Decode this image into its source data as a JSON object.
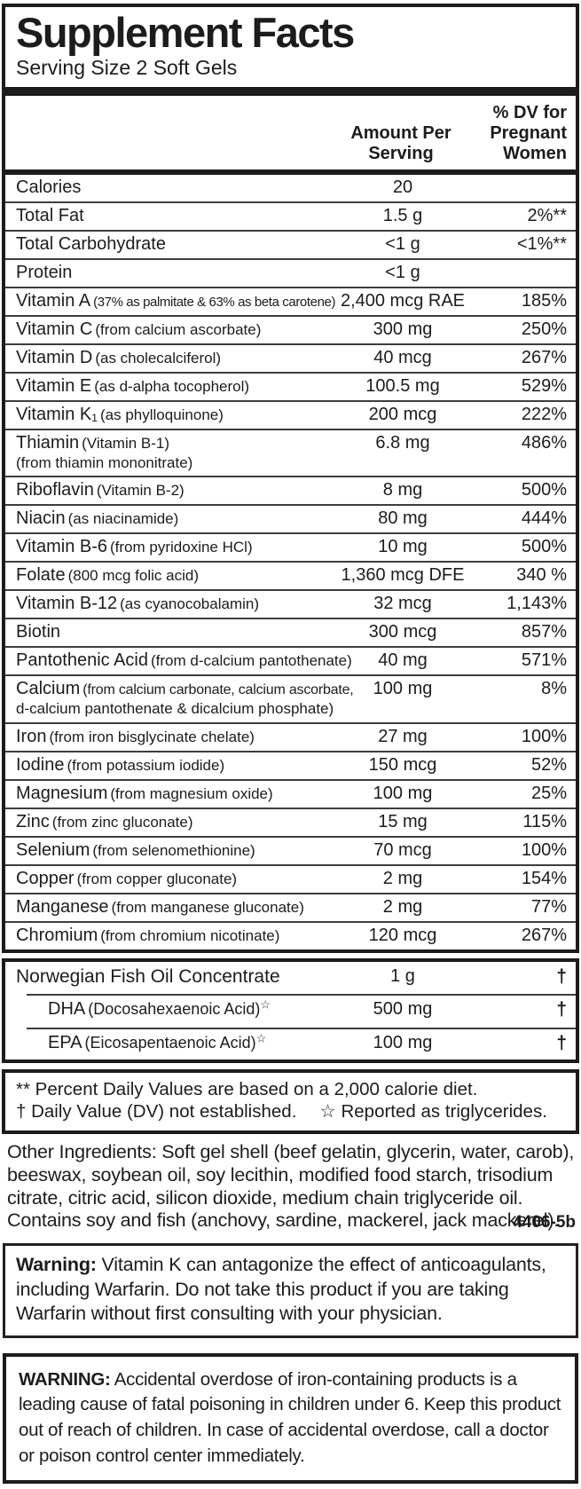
{
  "header": {
    "title": "Supplement Facts",
    "serving_size": "Serving Size 2 Soft Gels"
  },
  "columns": {
    "amount": "Amount Per\nServing",
    "dv": "% DV for\nPregnant\nWomen"
  },
  "main_rows": [
    {
      "name": "Calories",
      "detail": "",
      "line2": "",
      "amount": "20",
      "dv": ""
    },
    {
      "name": "Total Fat",
      "detail": "",
      "line2": "",
      "amount": "1.5 g",
      "dv": "2%**"
    },
    {
      "name": "Total Carbohydrate",
      "detail": "",
      "line2": "",
      "amount": "<1 g",
      "dv": "<1%**"
    },
    {
      "name": "Protein",
      "detail": "",
      "line2": "",
      "amount": "<1 g",
      "dv": ""
    },
    {
      "name": "Vitamin A",
      "detail": "(37% as palmitate & 63% as beta carotene)",
      "line2": "",
      "amount": "2,400 mcg RAE",
      "dv": "185%"
    },
    {
      "name": "Vitamin C",
      "detail": "(from calcium ascorbate)",
      "line2": "",
      "amount": "300 mg",
      "dv": "250%"
    },
    {
      "name": "Vitamin D",
      "detail": "(as cholecalciferol)",
      "line2": "",
      "amount": "40 mcg",
      "dv": "267%"
    },
    {
      "name": "Vitamin E",
      "detail": "(as d-alpha tocopherol)",
      "line2": "",
      "amount": "100.5 mg",
      "dv": "529%"
    },
    {
      "name": "Vitamin K₁",
      "detail": "(as phylloquinone)",
      "line2": "",
      "amount": "200 mcg",
      "dv": "222%"
    },
    {
      "name": "Thiamin",
      "detail": "(Vitamin B-1)",
      "line2": "(from thiamin mononitrate)",
      "amount": "6.8 mg",
      "dv": "486%"
    },
    {
      "name": "Riboflavin",
      "detail": "(Vitamin B-2)",
      "line2": "",
      "amount": "8 mg",
      "dv": "500%"
    },
    {
      "name": "Niacin",
      "detail": "(as niacinamide)",
      "line2": "",
      "amount": "80 mg",
      "dv": "444%"
    },
    {
      "name": "Vitamin B-6",
      "detail": "(from pyridoxine HCl)",
      "line2": "",
      "amount": "10 mg",
      "dv": "500%"
    },
    {
      "name": "Folate",
      "detail": "(800 mcg folic acid)",
      "line2": "",
      "amount": "1,360 mcg DFE",
      "dv": "340 %"
    },
    {
      "name": "Vitamin B-12",
      "detail": "(as cyanocobalamin)",
      "line2": "",
      "amount": "32 mcg",
      "dv": "1,143%"
    },
    {
      "name": "Biotin",
      "detail": "",
      "line2": "",
      "amount": "300 mcg",
      "dv": "857%"
    },
    {
      "name": "Pantothenic Acid",
      "detail": "(from d-calcium pantothenate)",
      "line2": "",
      "amount": "40 mg",
      "dv": "571%"
    },
    {
      "name": "Calcium",
      "detail": "(from calcium carbonate, calcium ascorbate,",
      "line2": "d-calcium pantothenate & dicalcium phosphate)",
      "amount": "100 mg",
      "dv": "8%"
    },
    {
      "name": "Iron",
      "detail": "(from iron bisglycinate chelate)",
      "line2": "",
      "amount": "27 mg",
      "dv": "100%"
    },
    {
      "name": "Iodine",
      "detail": "(from potassium iodide)",
      "line2": "",
      "amount": "150 mcg",
      "dv": "52%"
    },
    {
      "name": "Magnesium",
      "detail": "(from magnesium oxide)",
      "line2": "",
      "amount": "100 mg",
      "dv": "25%"
    },
    {
      "name": "Zinc",
      "detail": "(from zinc gluconate)",
      "line2": "",
      "amount": "15 mg",
      "dv": "115%"
    },
    {
      "name": "Selenium",
      "detail": "(from selenomethionine)",
      "line2": "",
      "amount": "70 mcg",
      "dv": "100%"
    },
    {
      "name": "Copper",
      "detail": "(from copper gluconate)",
      "line2": "",
      "amount": "2 mg",
      "dv": "154%"
    },
    {
      "name": "Manganese",
      "detail": "(from manganese gluconate)",
      "line2": "",
      "amount": "2 mg",
      "dv": "77%"
    },
    {
      "name": "Chromium",
      "detail": "(from chromium nicotinate)",
      "line2": "",
      "amount": "120 mcg",
      "dv": "267%"
    }
  ],
  "fish_rows": [
    {
      "name": "Norwegian Fish Oil Concentrate",
      "detail": "",
      "star": "",
      "amount": "1 g",
      "dv": "†",
      "indent": false
    },
    {
      "name": "DHA",
      "detail": "(Docosahexaenoic Acid)",
      "star": "☆",
      "amount": "500 mg",
      "dv": "†",
      "indent": true
    },
    {
      "name": "EPA",
      "detail": "(Eicosapentaenoic Acid)",
      "star": "☆",
      "amount": "100 mg",
      "dv": "†",
      "indent": true
    }
  ],
  "footnotes": {
    "calorie": "** Percent Daily Values are based on a 2,000 calorie diet.",
    "dv_note": "† Daily Value (DV) not established.",
    "star_note": "☆ Reported as triglycerides."
  },
  "other_ingredients": {
    "text": "Other Ingredients:  Soft gel shell (beef gelatin, glycerin, water, carob), beeswax, soybean oil, soy lecithin, modified food starch, trisodium citrate, citric acid, silicon dioxide, medium chain triglyceride oil.  Contains soy and fish (anchovy, sardine, mackerel, jack mackerel).",
    "code": "4406-5b"
  },
  "warnings": [
    {
      "label": "Warning:",
      "text": " Vitamin K can antagonize the effect of anticoagulants, including Warfarin. Do not take this product if you are taking Warfarin without first consulting with your physician."
    },
    {
      "label": "WARNING:",
      "text": " Accidental overdose of iron-containing products is a leading cause of fatal poisoning in children under 6. Keep this product out of reach of children. In case of accidental overdose, call a doctor or poison control center immediately."
    }
  ]
}
